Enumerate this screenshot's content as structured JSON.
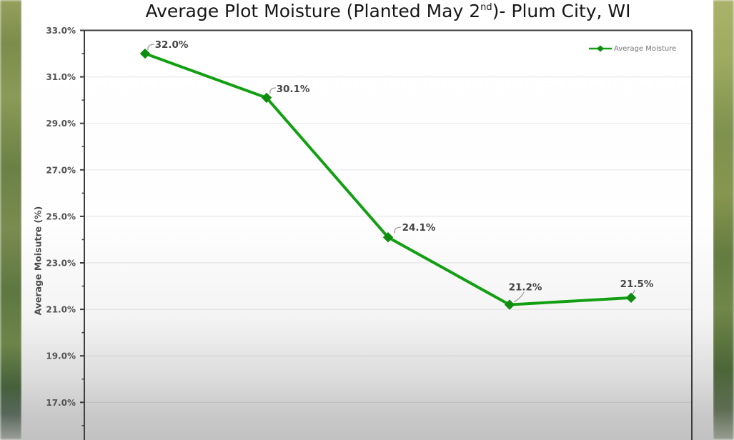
{
  "title": {
    "prefix": "Average Plot Moisture (Planted May 2",
    "superscript": "nd",
    "suffix": ")- Plum City, WI"
  },
  "y_axis": {
    "title": "Average Moisutre (%)",
    "tick_labels": [
      "33.0%",
      "31.0%",
      "29.0%",
      "27.0%",
      "25.0%",
      "23.0%",
      "21.0%",
      "19.0%",
      "17.0%"
    ]
  },
  "legend": {
    "label": "Average Moisture",
    "position": "top-right"
  },
  "chart_data": {
    "type": "line",
    "title": "Average Plot Moisture (Planted May 2nd)- Plum City, WI",
    "ylabel": "Average Moisutre (%)",
    "series": [
      {
        "name": "Average Moisture",
        "values": [
          32.0,
          30.1,
          24.1,
          21.2,
          21.5
        ],
        "data_labels": [
          "32.0%",
          "30.1%",
          "24.1%",
          "21.2%",
          "21.5%"
        ],
        "line_color": "#12a012",
        "marker_color": "#0d8c0d",
        "marker": "diamond"
      }
    ],
    "x_axis_labels_visible": false,
    "y_ticks": [
      33,
      31,
      29,
      27,
      25,
      23,
      21,
      19,
      17
    ],
    "minor_y_ticks": [
      32,
      30,
      28,
      26,
      24,
      22,
      20,
      18,
      16
    ],
    "ylim_visible": [
      16,
      33
    ],
    "grid": "horizontal-major",
    "legend_position": "top-right",
    "colors": {
      "gridline": "rgba(0,0,0,0.085)",
      "axis": "#3d3d3d",
      "tick_label": "#555555",
      "data_label": "#454545",
      "leader_line": "#9e9e9e"
    }
  }
}
